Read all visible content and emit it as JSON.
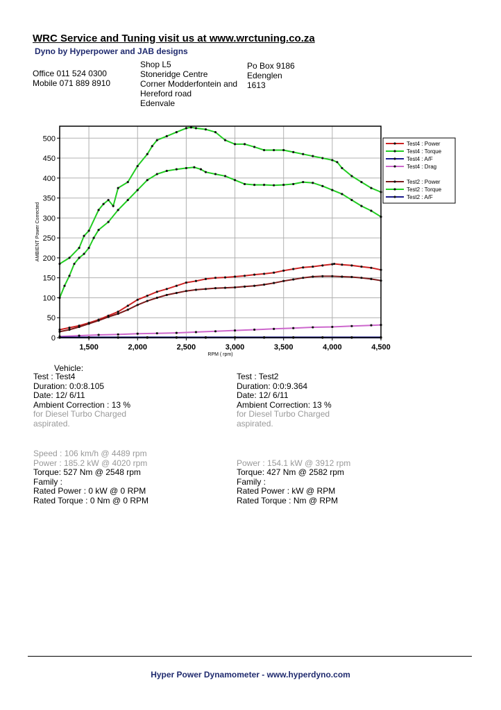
{
  "header": {
    "title": "WRC Service and Tuning visit us at www.wrctuning.co.za",
    "subtitle": "Dyno by Hyperpower and JAB designs",
    "phones": [
      "Office 011 524 0300",
      "Mobile 071 889 8910"
    ],
    "address": [
      "Shop L5",
      "Stoneridge Centre",
      "Corner Modderfontein and",
      "Hereford road",
      "Edenvale"
    ],
    "postal": [
      "Po Box 9186",
      "Edenglen",
      "1613"
    ]
  },
  "chart_data": {
    "type": "line",
    "xlabel": "RPM ( rpm)",
    "ylabel": "AMBIENT Power Corrected",
    "xlim": [
      1200,
      4500
    ],
    "ylim": [
      0,
      530
    ],
    "xticks": [
      1500,
      2000,
      2500,
      3000,
      3500,
      4000,
      4500
    ],
    "xtick_labels": [
      "1,500",
      "2,000",
      "2,500",
      "3,000",
      "3,500",
      "4,000",
      "4,500"
    ],
    "yticks": [
      0,
      50,
      100,
      150,
      200,
      250,
      300,
      350,
      400,
      450,
      500
    ],
    "grid": true,
    "legend_position": "top-right",
    "legend_groups": [
      [
        "Test4 : Power",
        "Test4 : Torque",
        "Test4 : A/F",
        "Test4 : Drag"
      ],
      [
        "Test2 : Power",
        "Test2 : Torque",
        "Test2 : A/F"
      ]
    ],
    "series": [
      {
        "name": "Test4 : Torque",
        "color": "#22cc22",
        "x": [
          1200,
          1300,
          1400,
          1450,
          1500,
          1600,
          1650,
          1700,
          1750,
          1800,
          1900,
          2000,
          2100,
          2150,
          2200,
          2300,
          2400,
          2500,
          2550,
          2600,
          2700,
          2800,
          2900,
          3000,
          3100,
          3200,
          3300,
          3400,
          3500,
          3600,
          3700,
          3800,
          3900,
          4000,
          4050,
          4100,
          4200,
          4300,
          4400,
          4500
        ],
        "y": [
          185,
          200,
          225,
          255,
          268,
          320,
          335,
          345,
          330,
          375,
          390,
          430,
          460,
          480,
          495,
          505,
          515,
          525,
          527,
          525,
          522,
          515,
          495,
          485,
          485,
          478,
          470,
          470,
          470,
          465,
          460,
          455,
          450,
          445,
          440,
          425,
          405,
          390,
          375,
          365
        ]
      },
      {
        "name": "Test2 : Torque",
        "color": "#22cc22",
        "x": [
          1200,
          1250,
          1300,
          1350,
          1400,
          1450,
          1500,
          1550,
          1600,
          1700,
          1800,
          1900,
          2000,
          2100,
          2200,
          2300,
          2400,
          2500,
          2582,
          2650,
          2700,
          2800,
          2900,
          3000,
          3100,
          3200,
          3300,
          3400,
          3500,
          3600,
          3700,
          3800,
          3900,
          4000,
          4100,
          4200,
          4300,
          4400,
          4500
        ],
        "y": [
          100,
          130,
          155,
          185,
          200,
          210,
          225,
          250,
          270,
          290,
          320,
          345,
          370,
          395,
          410,
          418,
          422,
          425,
          427,
          422,
          415,
          410,
          405,
          395,
          385,
          383,
          383,
          382,
          383,
          385,
          390,
          388,
          380,
          370,
          360,
          345,
          330,
          318,
          303
        ]
      },
      {
        "name": "Test4 : Power",
        "color": "#cc2222",
        "x": [
          1200,
          1300,
          1400,
          1500,
          1600,
          1700,
          1800,
          1900,
          2000,
          2100,
          2200,
          2300,
          2400,
          2500,
          2600,
          2700,
          2800,
          2900,
          3000,
          3100,
          3200,
          3300,
          3400,
          3500,
          3600,
          3700,
          3800,
          3900,
          4000,
          4020,
          4100,
          4200,
          4300,
          4400,
          4500
        ],
        "y": [
          20,
          25,
          30,
          37,
          45,
          55,
          65,
          80,
          95,
          105,
          115,
          122,
          130,
          138,
          142,
          147,
          150,
          151,
          153,
          155,
          158,
          160,
          163,
          168,
          172,
          176,
          178,
          181,
          184,
          185,
          183,
          181,
          178,
          175,
          170
        ]
      },
      {
        "name": "Test2 : Power",
        "color": "#7a1a1a",
        "x": [
          1200,
          1300,
          1400,
          1500,
          1600,
          1700,
          1800,
          1900,
          2000,
          2100,
          2200,
          2300,
          2400,
          2500,
          2600,
          2700,
          2800,
          2900,
          3000,
          3100,
          3200,
          3300,
          3400,
          3500,
          3600,
          3700,
          3800,
          3900,
          4000,
          4100,
          4200,
          4300,
          4400,
          4500
        ],
        "y": [
          15,
          20,
          27,
          35,
          43,
          52,
          60,
          70,
          82,
          92,
          100,
          107,
          112,
          117,
          120,
          122,
          124,
          125,
          126,
          128,
          130,
          133,
          137,
          142,
          146,
          150,
          153,
          154,
          154,
          153,
          152,
          150,
          147,
          143
        ]
      },
      {
        "name": "Test4 : Drag",
        "color": "#cc66cc",
        "x": [
          1200,
          1400,
          1600,
          1800,
          2000,
          2200,
          2400,
          2600,
          2800,
          3000,
          3200,
          3400,
          3600,
          3800,
          4000,
          4200,
          4400,
          4500
        ],
        "y": [
          3,
          5,
          7,
          8,
          10,
          11,
          12,
          14,
          16,
          18,
          20,
          22,
          24,
          26,
          27,
          29,
          31,
          32
        ]
      },
      {
        "name": "Test4 : A/F",
        "color": "#1a1a8c",
        "x": [
          1200,
          1500,
          1800,
          2100,
          2400,
          2700,
          3000,
          3300,
          3600,
          3900,
          4200,
          4500
        ],
        "y": [
          0,
          0,
          0,
          0,
          0,
          0,
          0,
          0,
          0,
          0,
          0,
          0
        ]
      },
      {
        "name": "Test2 : A/F",
        "color": "#1a1a8c",
        "x": [
          1200,
          1500,
          1800,
          2100,
          2400,
          2700,
          3000,
          3300,
          3600,
          3900,
          4200,
          4500
        ],
        "y": [
          1,
          1,
          1,
          1,
          1,
          1,
          1,
          1,
          1,
          1,
          1,
          1
        ]
      }
    ],
    "legend_colors": [
      "#cc2222",
      "#22cc22",
      "#1a1a8c",
      "#cc66cc",
      "#7a1a1a",
      "#22cc22",
      "#1a1a8c"
    ]
  },
  "vehicle_label": "Vehicle:",
  "test4": {
    "lines": [
      "Test    : Test4",
      "Duration: 0:0:8.105",
      "Date: 12/ 6/11",
      "Ambient Correction : 13 %"
    ],
    "note": [
      " for Diesel Turbo Charged",
      "aspirated."
    ],
    "results_grey": [
      "Speed : 106 km/h @ 4489 rpm",
      "Power : 185.2 kW @ 4020 rpm"
    ],
    "results": [
      "Torque: 527 Nm @ 2548 rpm",
      "Family :",
      "Rated Power : 0 kW @ 0 RPM",
      "Rated Torque : 0 Nm @ 0 RPM"
    ]
  },
  "test2": {
    "lines": [
      "Test    : Test2",
      "Duration: 0:0:9.364",
      "Date: 12/ 6/11",
      "Ambient Correction: 13 %"
    ],
    "note": [
      " for Diesel Turbo Charged",
      "aspirated."
    ],
    "results_grey": [
      "",
      "Power : 154.1 kW @ 3912 rpm"
    ],
    "results": [
      "Torque: 427 Nm @ 2582 rpm",
      "Family :",
      "Rated Power :  kW @  RPM",
      "Rated Torque :  Nm @  RPM"
    ]
  },
  "footer": "Hyper Power Dynamometer  -  www.hyperdyno.com"
}
